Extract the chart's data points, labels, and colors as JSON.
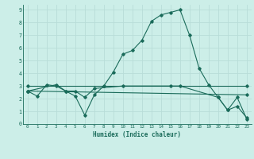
{
  "xlabel": "Humidex (Indice chaleur)",
  "bg_color": "#cceee8",
  "grid_color": "#b8ddd8",
  "line_color": "#1a6b5a",
  "xlim": [
    -0.5,
    23.5
  ],
  "ylim": [
    0,
    9.4
  ],
  "xtick_labels": [
    "0",
    "1",
    "2",
    "3",
    "4",
    "5",
    "6",
    "7",
    "8",
    "9",
    "10",
    "11",
    "12",
    "13",
    "14",
    "15",
    "16",
    "17",
    "18",
    "19",
    "20",
    "21",
    "22",
    "23"
  ],
  "xtick_vals": [
    0,
    1,
    2,
    3,
    4,
    5,
    6,
    7,
    8,
    9,
    10,
    11,
    12,
    13,
    14,
    15,
    16,
    17,
    18,
    19,
    20,
    21,
    22,
    23
  ],
  "yticks": [
    0,
    1,
    2,
    3,
    4,
    5,
    6,
    7,
    8,
    9
  ],
  "line1_x": [
    0,
    1,
    2,
    3,
    4,
    5,
    6,
    7,
    8,
    9,
    10,
    11,
    12,
    13,
    14,
    15,
    16,
    17,
    18,
    19,
    20,
    21,
    22,
    23
  ],
  "line1_y": [
    2.6,
    2.2,
    3.1,
    3.0,
    2.6,
    2.2,
    0.7,
    2.3,
    3.0,
    4.1,
    5.5,
    5.8,
    6.6,
    8.1,
    8.6,
    8.8,
    9.0,
    7.0,
    4.4,
    3.1,
    2.1,
    1.1,
    1.4,
    0.5
  ],
  "line2_x": [
    0,
    3,
    4,
    5,
    6,
    7,
    10,
    15,
    16,
    20,
    21,
    22,
    23
  ],
  "line2_y": [
    2.6,
    3.1,
    2.6,
    2.6,
    2.1,
    2.8,
    3.0,
    3.0,
    3.0,
    2.1,
    1.1,
    2.1,
    0.4
  ],
  "line3_x": [
    0,
    23
  ],
  "line3_y": [
    3.0,
    3.0
  ],
  "line4_x": [
    0,
    23
  ],
  "line4_y": [
    2.6,
    2.3
  ]
}
